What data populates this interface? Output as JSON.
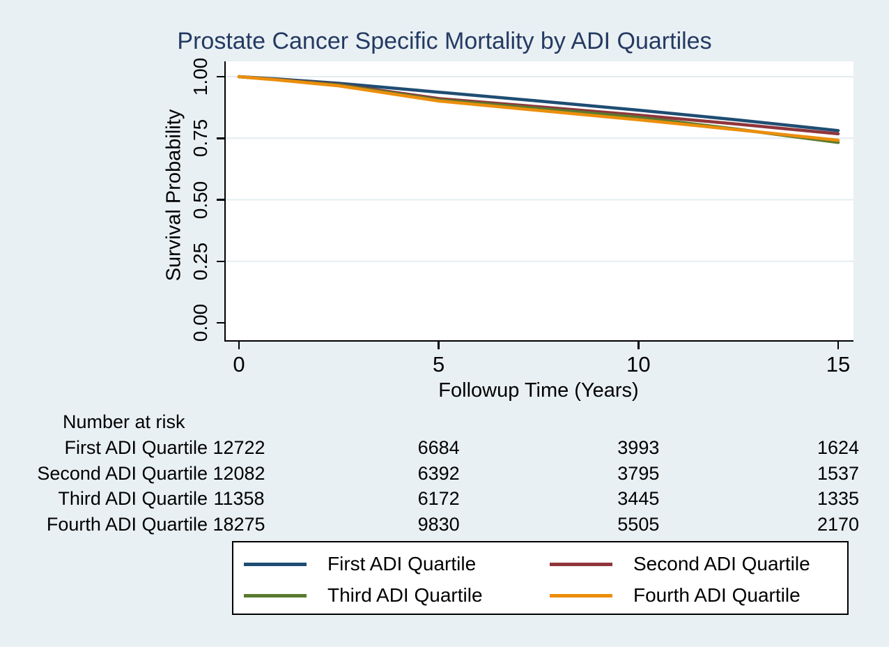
{
  "title": "Prostate Cancer Specific Mortality by ADI Quartiles",
  "colors": {
    "page_background": "#e9f0f3",
    "plot_background": "#ffffff",
    "gridline": "#e3edf0",
    "axis": "#000000",
    "title_text": "#243a63",
    "series": {
      "first": "#1f4d72",
      "second": "#90353b",
      "third": "#597a2e",
      "fourth": "#ec8e0c"
    }
  },
  "chart_data": {
    "type": "line",
    "title": "Prostate Cancer Specific Mortality by ADI Quartiles",
    "xlabel": "Followup Time (Years)",
    "ylabel": "Survival Probability",
    "xlim": [
      0,
      15
    ],
    "ylim": [
      0.0,
      1.0
    ],
    "x_tick_values": [
      0,
      5,
      10,
      15
    ],
    "x_tick_labels": [
      "0",
      "5",
      "10",
      "15"
    ],
    "y_tick_values": [
      0.0,
      0.25,
      0.5,
      0.75,
      1.0
    ],
    "y_tick_labels": [
      "0.00",
      "0.25",
      "0.50",
      "0.75",
      "1.00"
    ],
    "grid": true,
    "gridline_values": [
      0.25,
      0.5,
      0.75,
      1.0
    ],
    "legend_position": "bottom",
    "x": [
      0,
      1,
      2.5,
      5,
      7.5,
      10,
      12.5,
      15
    ],
    "series": [
      {
        "name": "First ADI Quartile",
        "color": "#1f4d72",
        "values": [
          1.0,
          0.99,
          0.973,
          0.937,
          0.901,
          0.864,
          0.824,
          0.781
        ]
      },
      {
        "name": "Second ADI Quartile",
        "color": "#90353b",
        "values": [
          1.0,
          0.988,
          0.968,
          0.911,
          0.878,
          0.844,
          0.807,
          0.768
        ]
      },
      {
        "name": "Third ADI Quartile",
        "color": "#597a2e",
        "values": [
          1.0,
          0.987,
          0.966,
          0.906,
          0.871,
          0.835,
          0.786,
          0.733
        ]
      },
      {
        "name": "Fourth ADI Quartile",
        "color": "#ec8e0c",
        "values": [
          1.0,
          0.986,
          0.963,
          0.901,
          0.863,
          0.825,
          0.784,
          0.742
        ]
      }
    ]
  },
  "risk_table": {
    "header": "Number at risk",
    "time_points": [
      0,
      5,
      10,
      15
    ],
    "rows": [
      {
        "label": "First ADI Quartile",
        "counts": [
          "12722",
          "6684",
          "3993",
          "1624"
        ]
      },
      {
        "label": "Second ADI Quartile",
        "counts": [
          "12082",
          "6392",
          "3795",
          "1537"
        ]
      },
      {
        "label": "Third ADI Quartile",
        "counts": [
          "11358",
          "6172",
          "3445",
          "1335"
        ]
      },
      {
        "label": "Fourth ADI Quartile",
        "counts": [
          "18275",
          "9830",
          "5505",
          "2170"
        ]
      }
    ]
  },
  "legend": {
    "items": [
      {
        "label": "First ADI Quartile",
        "color": "#1f4d72"
      },
      {
        "label": "Second ADI Quartile",
        "color": "#90353b"
      },
      {
        "label": "Third ADI Quartile",
        "color": "#597a2e"
      },
      {
        "label": "Fourth ADI Quartile",
        "color": "#ec8e0c"
      }
    ]
  }
}
